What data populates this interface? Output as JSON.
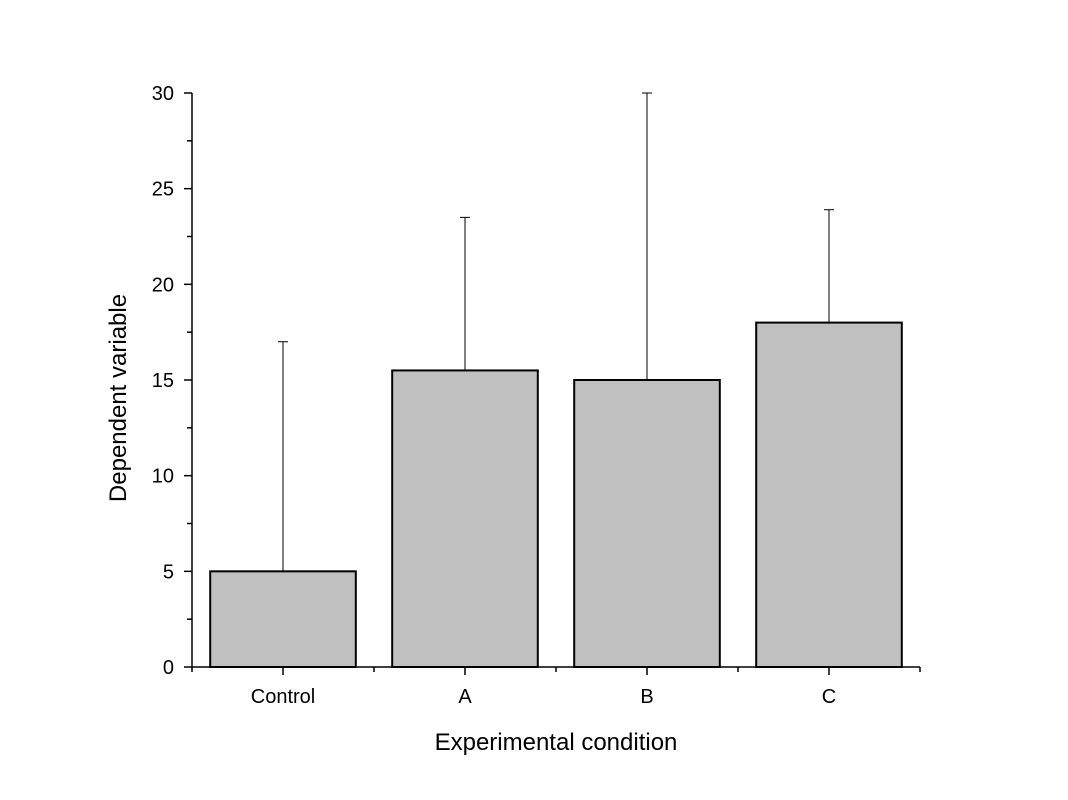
{
  "chart_data": {
    "type": "bar",
    "title": "",
    "xlabel": "Experimental condition",
    "ylabel": "Dependent variable",
    "categories": [
      "Control",
      "A",
      "B",
      "C"
    ],
    "values": [
      5,
      15.5,
      15,
      18
    ],
    "error_upper": [
      12,
      8,
      15,
      5.9
    ],
    "ylim": [
      0,
      30
    ],
    "yticks": [
      0,
      5,
      10,
      15,
      20,
      25,
      30
    ],
    "grid": false,
    "legend": "none",
    "bar_color": "#c0c0c0",
    "edge_color": "#000000"
  }
}
